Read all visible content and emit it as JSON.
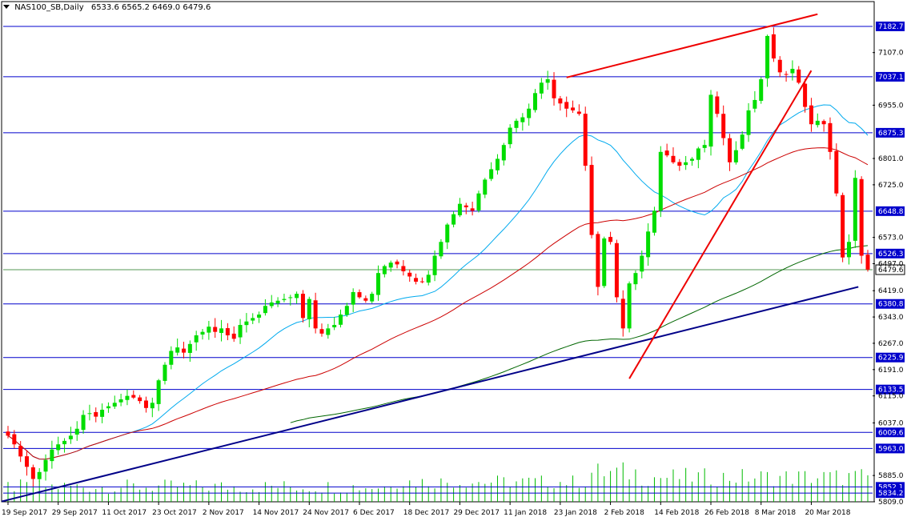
{
  "header": {
    "symbol": "NAS100_SB,Daily",
    "ohlc": "6533.6 6565.2 6469.0 6479.6"
  },
  "colors": {
    "bull": "#00dd00",
    "bear": "#ff0000",
    "ma_fast": "#00aaee",
    "ma_mid": "#cc0000",
    "ma_slow": "#006600",
    "level_line": "#0000cc",
    "trend_line_red": "#ee0000",
    "trend_line_blue": "#000088",
    "current_price_line": "#559955"
  },
  "chart_data": {
    "type": "candlestick",
    "price_axis_ticks": [
      "7107.0",
      "6955.0",
      "6801.0",
      "6725.0",
      "6573.0",
      "6497.0",
      "6419.0",
      "6343.0",
      "6267.0",
      "6191.0",
      "6115.0",
      "6037.0",
      "5885.0",
      "5809.0"
    ],
    "ylim": [
      5809,
      7252
    ],
    "x_labels": [
      "19 Sep 2017",
      "29 Sep 2017",
      "11 Oct 2017",
      "23 Oct 2017",
      "2 Nov 2017",
      "14 Nov 2017",
      "24 Nov 2017",
      "6 Dec 2017",
      "18 Dec 2017",
      "29 Dec 2017",
      "11 Jan 2018",
      "23 Jan 2018",
      "2 Feb 2018",
      "14 Feb 2018",
      "26 Feb 2018",
      "8 Mar 2018",
      "20 Mar 2018"
    ],
    "label_bar_index": [
      0,
      8,
      16,
      24,
      32,
      40,
      48,
      56,
      64,
      72,
      80,
      88,
      96,
      104,
      112,
      120,
      128
    ],
    "levels": [
      "7182.7",
      "7037.1",
      "6875.3",
      "6648.8",
      "6526.3",
      "6380.8",
      "6225.9",
      "6133.5",
      "6009.6",
      "5963.0",
      "5852.1",
      "5834.2"
    ],
    "current_price": "6479.6",
    "closes": [
      6000,
      5975,
      5940,
      5910,
      5875,
      5895,
      5930,
      5960,
      5975,
      5985,
      6000,
      6020,
      6060,
      6065,
      6055,
      6075,
      6085,
      6095,
      6105,
      6115,
      6110,
      6100,
      6080,
      6095,
      6160,
      6205,
      6245,
      6255,
      6240,
      6265,
      6290,
      6300,
      6315,
      6300,
      6310,
      6290,
      6280,
      6320,
      6330,
      6340,
      6350,
      6375,
      6385,
      6390,
      6395,
      6400,
      6410,
      6340,
      6395,
      6310,
      6295,
      6310,
      6320,
      6350,
      6375,
      6415,
      6400,
      6390,
      6410,
      6470,
      6490,
      6500,
      6495,
      6475,
      6460,
      6445,
      6445,
      6465,
      6520,
      6560,
      6610,
      6640,
      6670,
      6660,
      6650,
      6700,
      6740,
      6770,
      6800,
      6840,
      6890,
      6910,
      6920,
      6945,
      6990,
      7020,
      7030,
      6975,
      6960,
      6945,
      6940,
      6930,
      6780,
      6580,
      6430,
      6570,
      6560,
      6400,
      6310,
      6440,
      6470,
      6520,
      6590,
      6650,
      6820,
      6810,
      6790,
      6780,
      6790,
      6800,
      6830,
      6840,
      6985,
      6930,
      6860,
      6790,
      6825,
      6870,
      6940,
      6970,
      7030,
      7155,
      7090,
      7050,
      7045,
      7060,
      7020,
      6950,
      6900,
      6910,
      6900,
      6820,
      6700,
      6515,
      6560,
      6745,
      6520,
      6480
    ],
    "range_annotations": {
      "price_axis_min": "5809.0",
      "price_axis_max": "7182.7"
    }
  }
}
